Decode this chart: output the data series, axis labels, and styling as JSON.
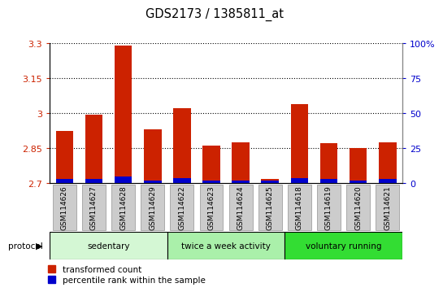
{
  "title": "GDS2173 / 1385811_at",
  "samples": [
    "GSM114626",
    "GSM114627",
    "GSM114628",
    "GSM114629",
    "GSM114622",
    "GSM114623",
    "GSM114624",
    "GSM114625",
    "GSM114618",
    "GSM114619",
    "GSM114620",
    "GSM114621"
  ],
  "red_values": [
    2.925,
    2.995,
    3.29,
    2.93,
    3.02,
    2.862,
    2.873,
    2.718,
    3.04,
    2.872,
    2.852,
    2.873
  ],
  "blue_values": [
    2.718,
    2.718,
    2.728,
    2.71,
    2.722,
    2.71,
    2.71,
    2.712,
    2.72,
    2.718,
    2.71,
    2.718
  ],
  "ylim_left": [
    2.7,
    3.3
  ],
  "ylim_right": [
    0,
    100
  ],
  "yticks_left": [
    2.7,
    2.85,
    3.0,
    3.15,
    3.3
  ],
  "yticks_right": [
    0,
    25,
    50,
    75,
    100
  ],
  "ytick_labels_right": [
    "0",
    "25",
    "50",
    "75",
    "100%"
  ],
  "grid_values": [
    2.85,
    3.0,
    3.15,
    3.3
  ],
  "groups": [
    {
      "label": "sedentary",
      "indices": [
        0,
        1,
        2,
        3
      ],
      "color": "#d4f7d4"
    },
    {
      "label": "twice a week activity",
      "indices": [
        4,
        5,
        6,
        7
      ],
      "color": "#aaf0aa"
    },
    {
      "label": "voluntary running",
      "indices": [
        8,
        9,
        10,
        11
      ],
      "color": "#33dd33"
    }
  ],
  "bar_width": 0.6,
  "red_color": "#cc2200",
  "blue_color": "#0000cc",
  "left_tick_color": "#cc2200",
  "right_tick_color": "#0000cc",
  "background_color": "#ffffff",
  "label_red": "transformed count",
  "label_blue": "percentile rank within the sample",
  "bar_baseline": 2.7,
  "xtick_bg_color": "#cccccc",
  "xtick_border_color": "#aaaaaa"
}
